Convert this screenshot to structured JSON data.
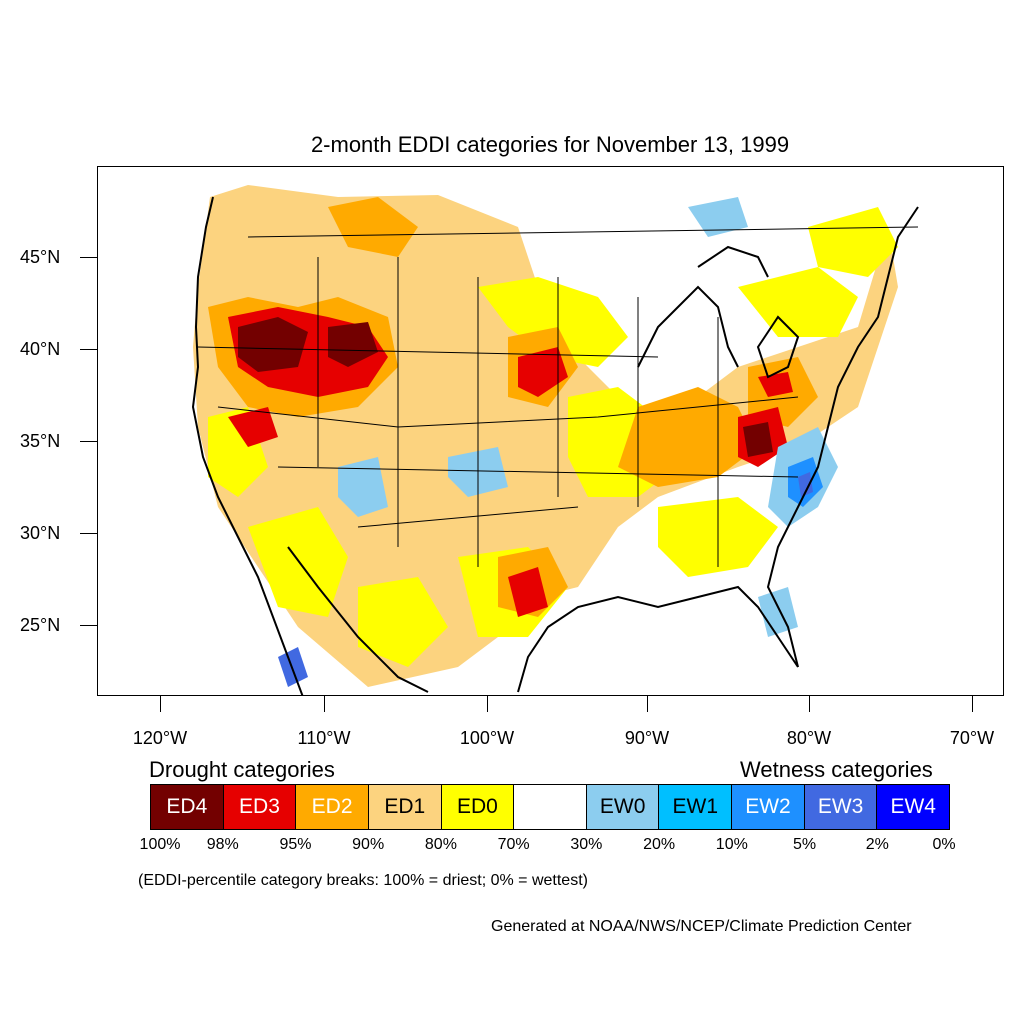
{
  "title": "2-month EDDI categories for November 13, 1999",
  "lat_labels": [
    "45°N",
    "40°N",
    "35°N",
    "30°N",
    "25°N"
  ],
  "lon_labels": [
    "120°W",
    "110°W",
    "100°W",
    "90°W",
    "80°W",
    "70°W"
  ],
  "legend": {
    "drought_heading": "Drought categories",
    "wetness_heading": "Wetness categories",
    "categories": [
      {
        "label": "ED4",
        "color": "#730000",
        "text_color": "#ffffff"
      },
      {
        "label": "ED3",
        "color": "#e60000",
        "text_color": "#ffffff"
      },
      {
        "label": "ED2",
        "color": "#ffaa00",
        "text_color": "#ffffff"
      },
      {
        "label": "ED1",
        "color": "#fcd37f",
        "text_color": "#000000"
      },
      {
        "label": "ED0",
        "color": "#ffff00",
        "text_color": "#000000"
      },
      {
        "label": "",
        "color": "#ffffff",
        "text_color": "#000000"
      },
      {
        "label": "EW0",
        "color": "#8ccdef",
        "text_color": "#000000"
      },
      {
        "label": "EW1",
        "color": "#00bfff",
        "text_color": "#000000"
      },
      {
        "label": "EW2",
        "color": "#1e90ff",
        "text_color": "#ffffff"
      },
      {
        "label": "EW3",
        "color": "#4169e1",
        "text_color": "#ffffff"
      },
      {
        "label": "EW4",
        "color": "#0000ff",
        "text_color": "#ffffff"
      }
    ],
    "percent_breaks": [
      "100%",
      "98%",
      "95%",
      "90%",
      "80%",
      "70%",
      "30%",
      "20%",
      "10%",
      "5%",
      "2%",
      "0%"
    ]
  },
  "note": "(EDDI-percentile category breaks: 100% = driest; 0% = wettest)",
  "credit": "Generated at NOAA/NWS/NCEP/Climate Prediction Center"
}
